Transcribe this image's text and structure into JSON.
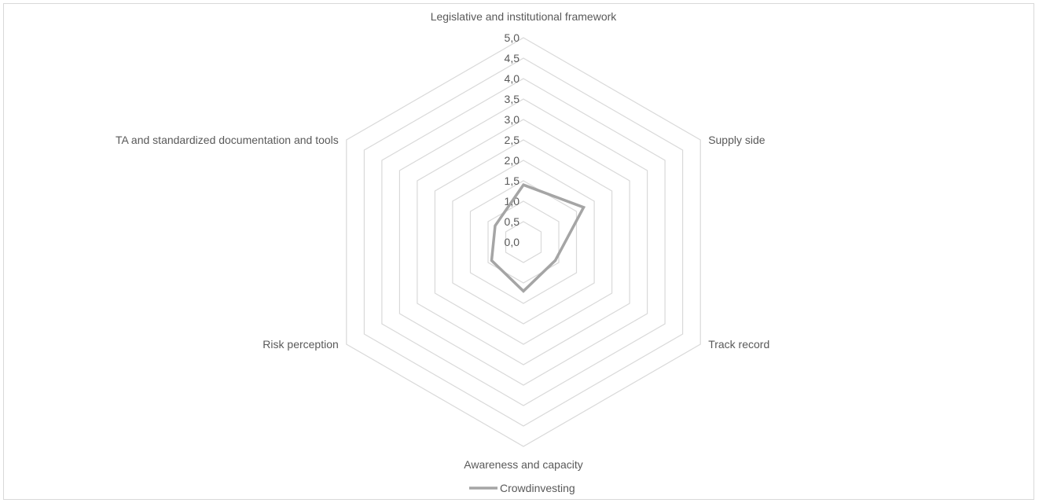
{
  "chart_data": {
    "type": "radar",
    "title": "",
    "axes": [
      "Legislative and institutional framework",
      "Supply side",
      "Track record",
      "Awareness and capacity",
      "Risk perception",
      "TA and standardized documentation and tools"
    ],
    "scale": {
      "min": 0,
      "max": 5,
      "step": 0.5
    },
    "tick_labels": [
      "0,0",
      "0,5",
      "1,0",
      "1,5",
      "2,0",
      "2,5",
      "3,0",
      "3,5",
      "4,0",
      "4,5",
      "5,0"
    ],
    "grid": true,
    "legend_position": "bottom",
    "series": [
      {
        "name": "Crowdinvesting",
        "values": [
          1.4,
          1.7,
          0.9,
          1.2,
          0.9,
          0.8
        ]
      }
    ],
    "colors": {
      "series": "#a5a5a5",
      "grid": "#d9d9d9",
      "text": "#595959",
      "border": "#d9d9d9"
    }
  }
}
